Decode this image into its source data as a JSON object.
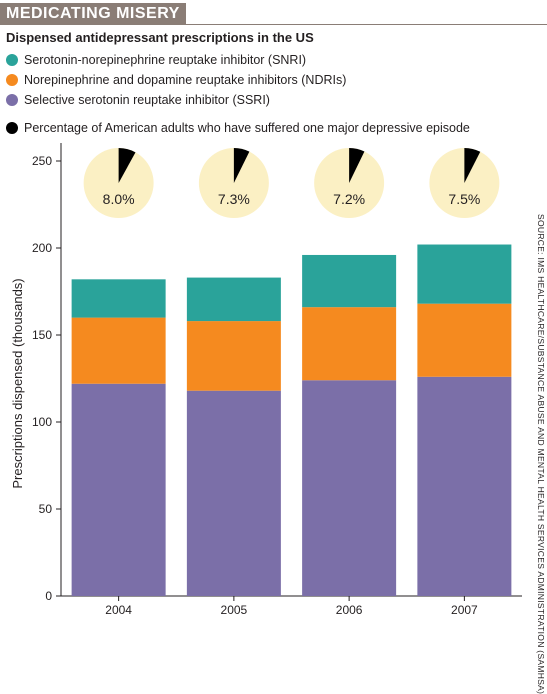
{
  "header": {
    "title": "MEDICATING MISERY",
    "subtitle": "Dispensed antidepressant prescriptions in the US"
  },
  "legend": {
    "items": [
      {
        "label": "Serotonin-norepinephrine reuptake inhibitor (SNRI)",
        "color": "#2aa39a"
      },
      {
        "label": "Norepinephrine and dopamine reuptake inhibitors (NDRIs)",
        "color": "#f58a1f"
      },
      {
        "label": "Selective serotonin reuptake inhibitor (SSRI)",
        "color": "#7b6fa8"
      }
    ],
    "pie_item": {
      "label": "Percentage of American adults who have suffered one major depressive episode",
      "color": "#000000"
    }
  },
  "source": "SOURCE: IMS HEALTHCARE/SUBSTANCE ABUSE AND MENTAL HEALTH SERVICES ADMINISTRATION (SAMHSA)",
  "chart_data": {
    "type": "bar",
    "stacked": true,
    "categories": [
      "2004",
      "2005",
      "2006",
      "2007"
    ],
    "ylabel": "Prescriptions dispensed (thousands)",
    "ylim": [
      0,
      250
    ],
    "yticks": [
      0,
      50,
      100,
      150,
      200,
      250
    ],
    "series": [
      {
        "name": "Selective serotonin reuptake inhibitor (SSRI)",
        "color": "#7b6fa8",
        "values": [
          122,
          118,
          124,
          126
        ]
      },
      {
        "name": "Norepinephrine and dopamine reuptake inhibitors (NDRIs)",
        "color": "#f58a1f",
        "values": [
          38,
          40,
          42,
          42
        ]
      },
      {
        "name": "Serotonin-norepinephrine reuptake inhibitor (SNRI)",
        "color": "#2aa39a",
        "values": [
          22,
          25,
          30,
          34
        ]
      }
    ],
    "pies": {
      "values": [
        8.0,
        7.3,
        7.2,
        7.5
      ],
      "labels": [
        "8.0%",
        "7.3%",
        "7.2%",
        "7.5%"
      ],
      "fill": "#000000",
      "background": "#fbf0c4"
    }
  }
}
